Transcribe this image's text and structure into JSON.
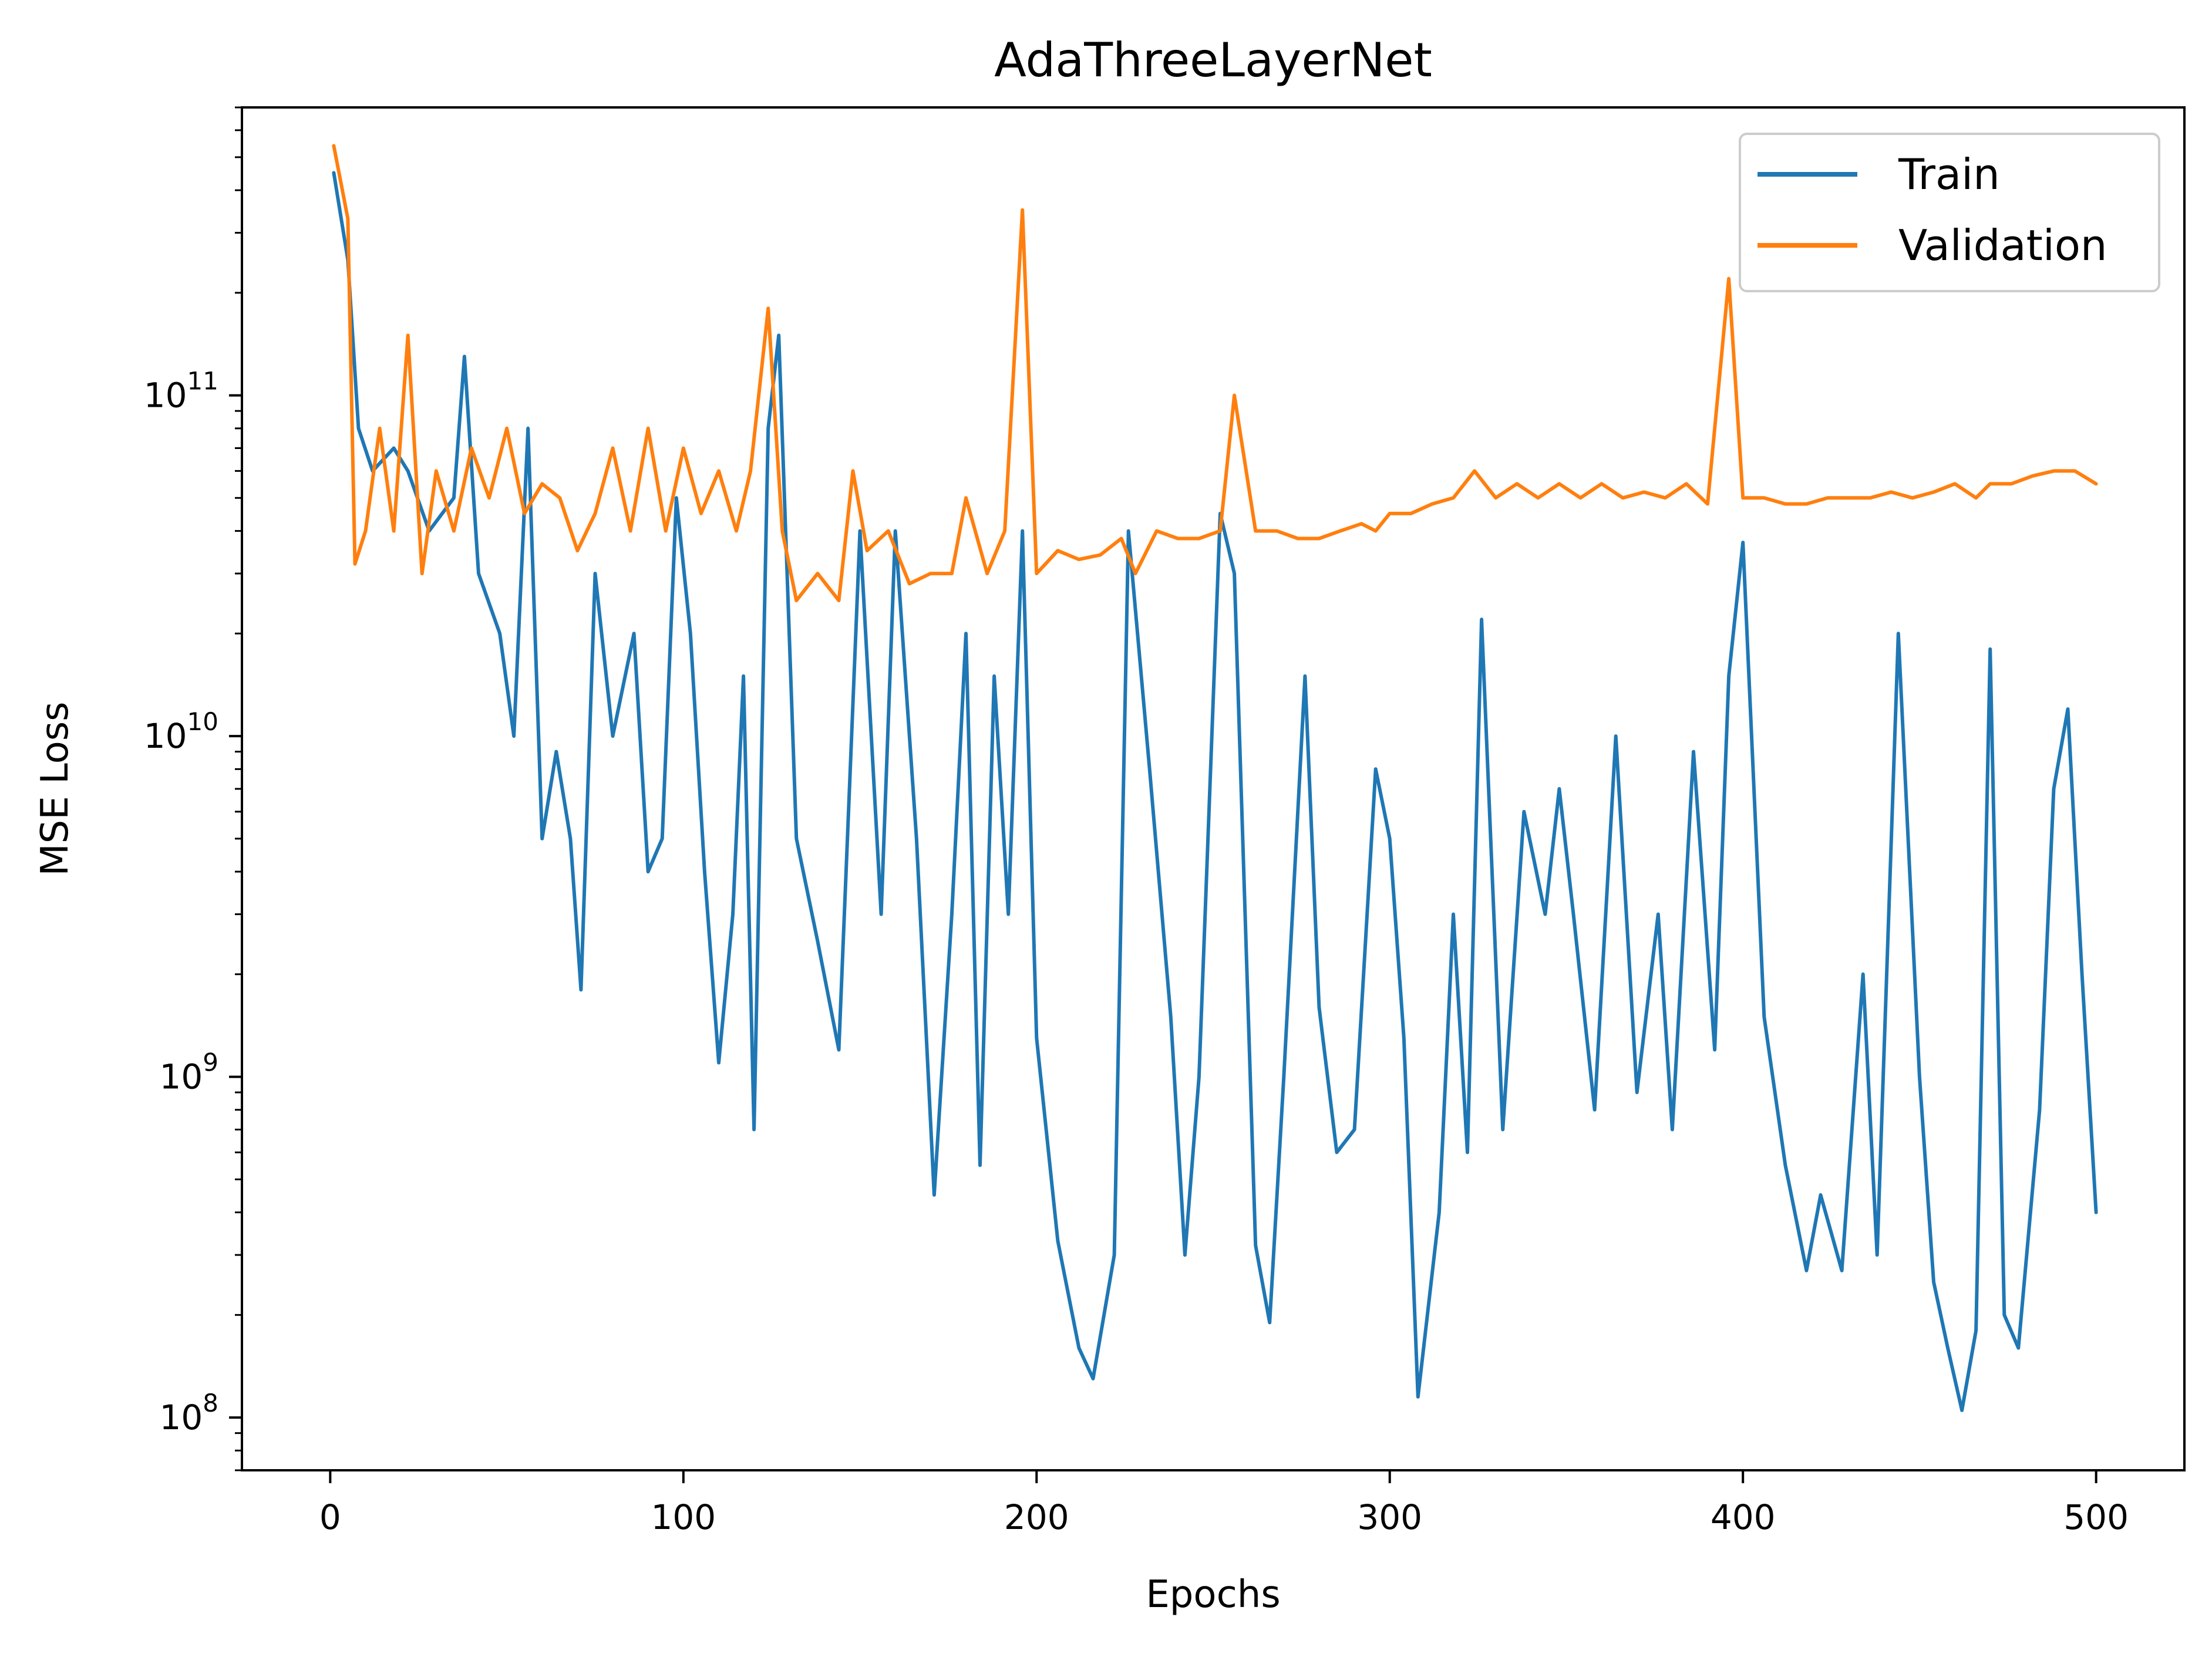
{
  "chart_data": {
    "type": "line",
    "title": "AdaThreeLayerNet",
    "xlabel": "Epochs",
    "ylabel": "MSE Loss",
    "xlim": [
      -25,
      525
    ],
    "ylim": [
      70000000,
      700000000000
    ],
    "yscale": "log",
    "xticks": [
      0,
      100,
      200,
      300,
      400,
      500
    ],
    "ytick_labels": [
      {
        "base": "10",
        "exp": "8"
      },
      {
        "base": "10",
        "exp": "9"
      },
      {
        "base": "10",
        "exp": "10"
      },
      {
        "base": "10",
        "exp": "11"
      }
    ],
    "legend": {
      "position": "top-right"
    },
    "grid": false,
    "series": [
      {
        "name": "Train",
        "color": "#1f77b4",
        "x": [
          1,
          5,
          8,
          12,
          18,
          22,
          28,
          35,
          38,
          42,
          48,
          52,
          56,
          60,
          64,
          68,
          71,
          75,
          80,
          86,
          90,
          94,
          98,
          102,
          106,
          110,
          114,
          117,
          120,
          124,
          127,
          132,
          138,
          144,
          150,
          156,
          160,
          166,
          171,
          176,
          180,
          184,
          188,
          192,
          196,
          200,
          206,
          212,
          216,
          222,
          226,
          232,
          238,
          242,
          246,
          252,
          256,
          262,
          266,
          270,
          276,
          280,
          285,
          290,
          296,
          300,
          304,
          308,
          314,
          318,
          322,
          326,
          332,
          338,
          344,
          348,
          352,
          358,
          364,
          370,
          376,
          380,
          386,
          392,
          396,
          400,
          406,
          412,
          418,
          422,
          428,
          434,
          438,
          444,
          450,
          454,
          458,
          462,
          466,
          470,
          474,
          478,
          484,
          488,
          492,
          496,
          500
        ],
        "values": [
          450000000000,
          250000000000,
          80000000000,
          60000000000,
          70000000000,
          60000000000,
          40000000000,
          50000000000,
          130000000000,
          30000000000,
          20000000000,
          10000000000,
          80000000000,
          5000000000,
          9000000000,
          5000000000,
          1800000000,
          30000000000,
          10000000000,
          20000000000,
          4000000000,
          5000000000,
          50000000000,
          20000000000,
          4000000000,
          1100000000,
          3000000000,
          15000000000,
          700000000,
          80000000000,
          150000000000,
          5000000000,
          2500000000,
          1200000000,
          40000000000,
          3000000000,
          40000000000,
          5000000000,
          450000000,
          3000000000,
          20000000000,
          550000000,
          15000000000,
          3000000000,
          40000000000,
          1300000000,
          330000000,
          160000000,
          130000000,
          300000000,
          40000000000,
          8000000000,
          1500000000,
          300000000,
          1000000000,
          45000000000,
          30000000000,
          320000000,
          190000000,
          1000000000,
          15000000000,
          1600000000,
          600000000,
          700000000,
          8000000000,
          5000000000,
          1300000000,
          115000000,
          400000000,
          3000000000,
          600000000,
          22000000000,
          700000000,
          6000000000,
          3000000000,
          7000000000,
          3000000000,
          800000000,
          10000000000,
          900000000,
          3000000000,
          700000000,
          9000000000,
          1200000000,
          15000000000,
          37000000000,
          1500000000,
          550000000,
          270000000,
          450000000,
          270000000,
          2000000000,
          300000000,
          20000000000,
          1000000000,
          250000000,
          160000000,
          105000000,
          180000000,
          18000000000,
          200000000,
          160000000,
          800000000,
          7000000000,
          12000000000,
          2000000000,
          400000000
        ]
      },
      {
        "name": "Validation",
        "color": "#ff7f0e",
        "x": [
          1,
          5,
          7,
          10,
          14,
          18,
          22,
          26,
          30,
          35,
          40,
          45,
          50,
          55,
          60,
          65,
          70,
          75,
          80,
          85,
          90,
          95,
          100,
          105,
          110,
          115,
          119,
          124,
          128,
          132,
          138,
          144,
          148,
          152,
          158,
          164,
          170,
          176,
          180,
          186,
          191,
          196,
          200,
          206,
          212,
          218,
          224,
          228,
          234,
          240,
          246,
          252,
          256,
          262,
          268,
          274,
          280,
          286,
          292,
          296,
          300,
          306,
          312,
          318,
          324,
          330,
          336,
          342,
          348,
          354,
          360,
          366,
          372,
          378,
          384,
          390,
          396,
          400,
          406,
          412,
          418,
          424,
          430,
          436,
          442,
          448,
          454,
          460,
          466,
          470,
          476,
          482,
          488,
          494,
          500
        ],
        "values": [
          540000000000,
          330000000000,
          32000000000,
          40000000000,
          80000000000,
          40000000000,
          150000000000,
          30000000000,
          60000000000,
          40000000000,
          70000000000,
          50000000000,
          80000000000,
          45000000000,
          55000000000,
          50000000000,
          35000000000,
          45000000000,
          70000000000,
          40000000000,
          80000000000,
          40000000000,
          70000000000,
          45000000000,
          60000000000,
          40000000000,
          60000000000,
          180000000000,
          40000000000,
          25000000000,
          30000000000,
          25000000000,
          60000000000,
          35000000000,
          40000000000,
          28000000000,
          30000000000,
          30000000000,
          50000000000,
          30000000000,
          40000000000,
          350000000000,
          30000000000,
          35000000000,
          33000000000,
          34000000000,
          38000000000,
          30000000000,
          40000000000,
          38000000000,
          38000000000,
          40000000000,
          100000000000,
          40000000000,
          40000000000,
          38000000000,
          38000000000,
          40000000000,
          42000000000,
          40000000000,
          45000000000,
          45000000000,
          48000000000,
          50000000000,
          60000000000,
          50000000000,
          55000000000,
          50000000000,
          55000000000,
          50000000000,
          55000000000,
          50000000000,
          52000000000,
          50000000000,
          55000000000,
          48000000000,
          220000000000,
          50000000000,
          50000000000,
          48000000000,
          48000000000,
          50000000000,
          50000000000,
          50000000000,
          52000000000,
          50000000000,
          52000000000,
          55000000000,
          50000000000,
          55000000000,
          55000000000,
          58000000000,
          60000000000,
          60000000000,
          55000000000
        ]
      }
    ]
  }
}
